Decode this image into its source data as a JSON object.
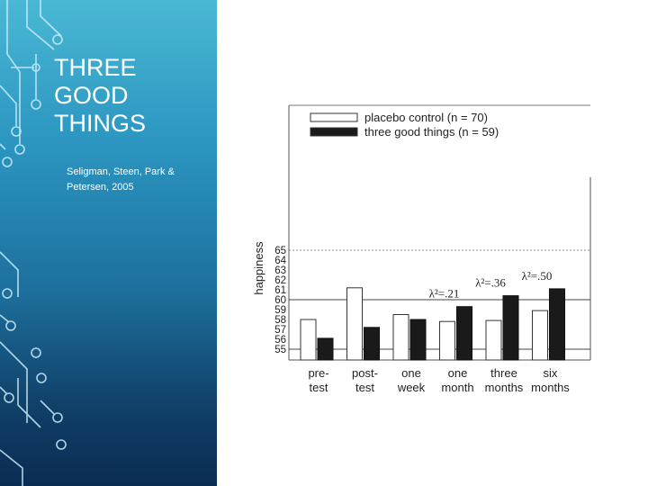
{
  "slide": {
    "title": "THREE\nGOOD\nTHINGS",
    "subtitle": "Seligman, Steen, Park & Petersen, 2005"
  },
  "colors": {
    "panel_top": "#49b8d4",
    "panel_bottom": "#0b2c52",
    "treatment_bar": "#1a1a1a",
    "control_bar": "#ffffff"
  },
  "chart_data": {
    "type": "bar",
    "title": "",
    "ylabel": "happiness",
    "ylim": [
      55,
      65
    ],
    "yticks": [
      55,
      56,
      57,
      58,
      59,
      60,
      61,
      62,
      63,
      64,
      65
    ],
    "categories": [
      "pre-\ntest",
      "post-\ntest",
      "one\nweek",
      "one\nmonth",
      "three\nmonths",
      "six\nmonths"
    ],
    "series": [
      {
        "name": "placebo control (n = 70)",
        "values": [
          58.0,
          61.2,
          58.5,
          57.8,
          57.9,
          58.9
        ]
      },
      {
        "name": "three good things (n = 59)",
        "values": [
          56.1,
          57.2,
          58.0,
          59.3,
          60.4,
          61.1
        ]
      }
    ],
    "annotations": [
      {
        "label": "λ²=.21",
        "category_index": 3
      },
      {
        "label": "λ²=.36",
        "category_index": 4
      },
      {
        "label": "λ²=.50",
        "category_index": 5
      }
    ],
    "legend_position": "top"
  }
}
